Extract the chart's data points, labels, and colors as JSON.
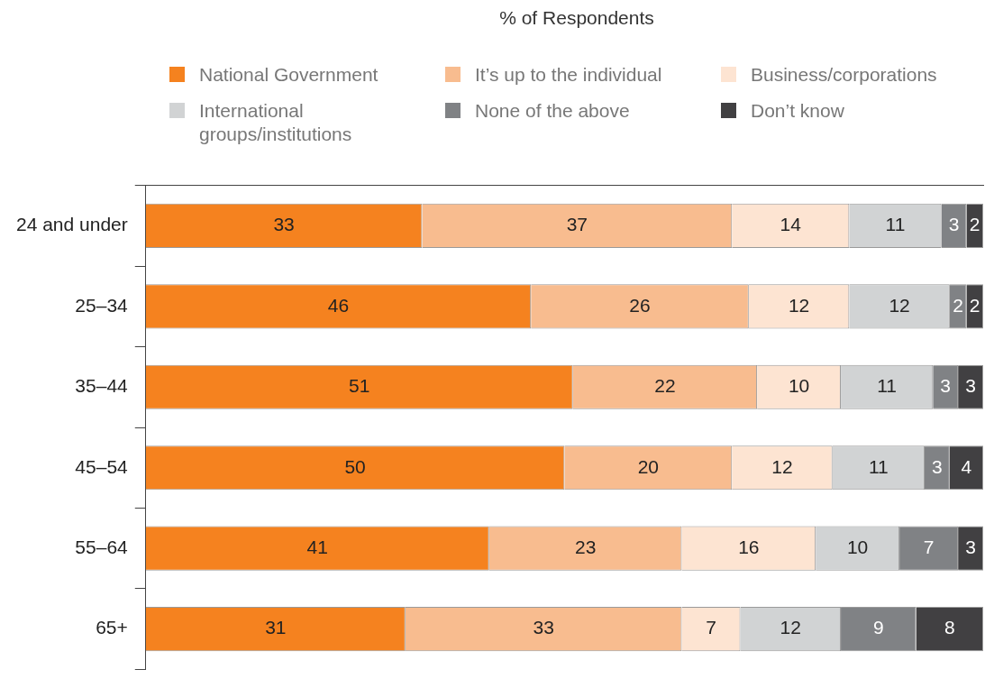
{
  "chart_data": {
    "type": "bar",
    "orientation": "horizontal",
    "stacked": true,
    "title": "% of Respondents",
    "categories": [
      "24 and under",
      "25–34",
      "35–44",
      "45–54",
      "55–64",
      "65+"
    ],
    "series": [
      {
        "name": "National Government",
        "color": "#f5821f",
        "values": [
          33,
          46,
          51,
          50,
          41,
          31
        ]
      },
      {
        "name": "It’s up to the individual",
        "color": "#f8bc8f",
        "values": [
          37,
          26,
          22,
          20,
          23,
          33
        ]
      },
      {
        "name": "Business/corporations",
        "color": "#fde4d2",
        "values": [
          14,
          12,
          10,
          12,
          16,
          7
        ]
      },
      {
        "name": "International groups/institutions",
        "color": "#d1d3d4",
        "values": [
          11,
          12,
          11,
          11,
          10,
          12
        ]
      },
      {
        "name": "None of the above",
        "color": "#808285",
        "values": [
          3,
          2,
          3,
          3,
          7,
          9
        ]
      },
      {
        "name": "Don’t know",
        "color": "#414042",
        "values": [
          2,
          2,
          3,
          4,
          3,
          8
        ]
      }
    ],
    "xlim": [
      0,
      100
    ],
    "data_labels": true,
    "legend": "top",
    "grid": false,
    "tick_labels": "y"
  }
}
